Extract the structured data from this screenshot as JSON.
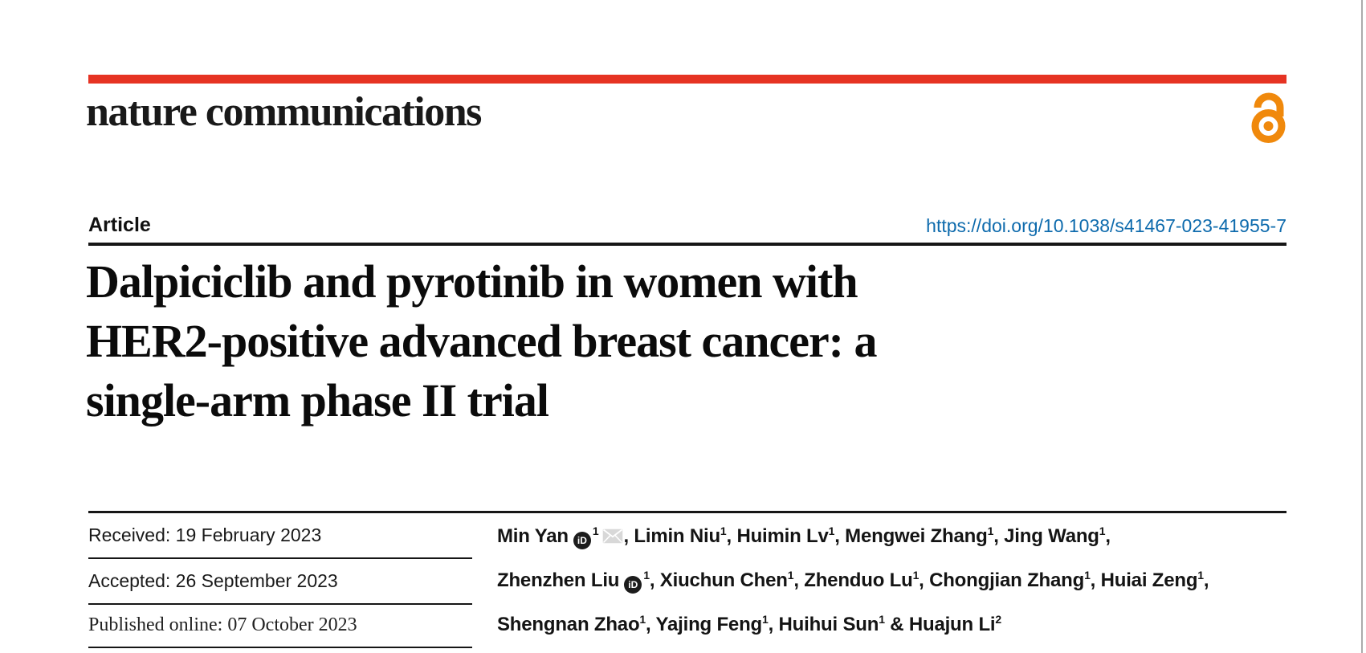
{
  "page": {
    "background": "#ffffff",
    "right_edge_line_color": "#ababab"
  },
  "masthead": {
    "brand": "nature communications",
    "bar_color": "#e63323",
    "open_access": {
      "icon": "open-access-padlock-icon",
      "color": "#f0890c"
    }
  },
  "article_header": {
    "kicker": "Article",
    "doi": {
      "text": "https://doi.org/10.1038/s41467-023-41955-7",
      "color": "#0e6bad"
    }
  },
  "title": {
    "full": "Dalpiciclib and pyrotinib in women with HER2-positive advanced breast cancer: a single-arm phase II trial",
    "lines": [
      "Dalpiciclib and pyrotinib in women with",
      "HER2-positive advanced breast cancer: a",
      "single-arm phase II trial"
    ]
  },
  "history": {
    "received": "Received: 19 February 2023",
    "accepted": "Accepted: 26 September 2023",
    "published": "Published online: 07 October 2023"
  },
  "icons": {
    "orcid_glyph": "iD",
    "mail_icon": "envelope-icon"
  },
  "authors": {
    "line1": [
      {
        "t": "Min Yan"
      },
      {
        "icon": "orcid"
      },
      {
        "sup": "1"
      },
      {
        "icon": "mail"
      },
      {
        "t": ", Limin Niu"
      },
      {
        "sup": "1"
      },
      {
        "t": ", Huimin Lv"
      },
      {
        "sup": "1"
      },
      {
        "t": ", Mengwei Zhang"
      },
      {
        "sup": "1"
      },
      {
        "t": ", Jing Wang"
      },
      {
        "sup": "1"
      },
      {
        "t": ","
      }
    ],
    "line2": [
      {
        "t": "Zhenzhen Liu"
      },
      {
        "icon": "orcid"
      },
      {
        "sup": "1"
      },
      {
        "t": ", Xiuchun Chen"
      },
      {
        "sup": "1"
      },
      {
        "t": ", Zhenduo Lu"
      },
      {
        "sup": "1"
      },
      {
        "t": ", Chongjian Zhang"
      },
      {
        "sup": "1"
      },
      {
        "t": ", Huiai Zeng"
      },
      {
        "sup": "1"
      },
      {
        "t": ","
      }
    ],
    "line3": [
      {
        "t": "Shengnan Zhao"
      },
      {
        "sup": "1"
      },
      {
        "t": ", Yajing Feng"
      },
      {
        "sup": "1"
      },
      {
        "t": ", Huihui Sun"
      },
      {
        "sup": "1"
      },
      {
        "t": " & Huajun Li"
      },
      {
        "sup": "2"
      }
    ]
  }
}
